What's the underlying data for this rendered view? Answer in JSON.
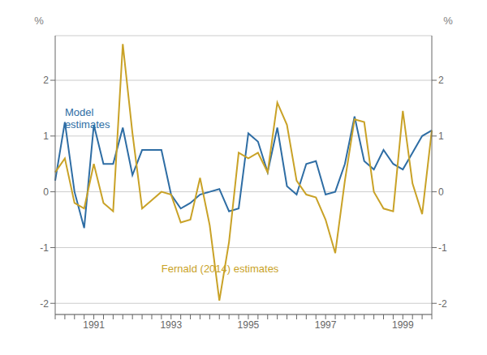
{
  "chart_data": {
    "type": "line",
    "y_label": "%",
    "y2_label": "%",
    "categories": [
      null,
      null,
      null,
      null,
      "1991",
      null,
      null,
      null,
      null,
      null,
      null,
      null,
      "1993",
      null,
      null,
      null,
      null,
      null,
      null,
      null,
      "1995",
      null,
      null,
      null,
      null,
      null,
      null,
      null,
      "1997",
      null,
      null,
      null,
      null,
      null,
      null,
      null,
      "1999",
      null,
      null,
      null
    ],
    "series": [
      {
        "color": "#2e6da4",
        "values": [
          0.2,
          1.25,
          0.0,
          -0.65,
          1.2,
          0.5,
          0.5,
          1.15,
          0.3,
          0.75,
          0.75,
          0.75,
          -0.05,
          -0.3,
          -0.2,
          -0.05,
          0.0,
          0.05,
          -0.35,
          -0.3,
          1.05,
          0.9,
          0.35,
          1.15,
          0.1,
          -0.05,
          0.5,
          0.55,
          -0.05,
          0.0,
          0.5,
          1.35,
          0.55,
          0.4,
          0.75,
          0.5,
          0.4,
          0.7,
          1.0,
          1.1
        ]
      },
      {
        "color": "#c9a227",
        "values": [
          0.35,
          0.6,
          -0.2,
          -0.3,
          0.5,
          -0.2,
          -0.35,
          2.65,
          1.05,
          -0.3,
          -0.15,
          0.0,
          -0.05,
          -0.55,
          -0.5,
          0.25,
          -0.6,
          -1.95,
          -0.9,
          0.7,
          0.6,
          0.7,
          0.35,
          1.6,
          1.2,
          0.2,
          -0.05,
          -0.1,
          -0.5,
          -1.1,
          0.2,
          1.3,
          1.25,
          0.0,
          -0.3,
          -0.35,
          1.45,
          0.15,
          -0.4,
          1.1
        ]
      }
    ],
    "annotations": [
      {
        "text": "Model\nestimates",
        "color": "#2e6da4"
      },
      {
        "text": "Fernald (2014) estimates",
        "color": "#c9a227"
      }
    ],
    "ylim": [
      -2.2,
      2.8
    ],
    "yticks": [
      -2,
      -1,
      0,
      1,
      2
    ],
    "y2lim": [
      -2.2,
      2.8
    ],
    "y2ticks": [
      -2,
      -1,
      0,
      1,
      2
    ],
    "grid": true
  }
}
